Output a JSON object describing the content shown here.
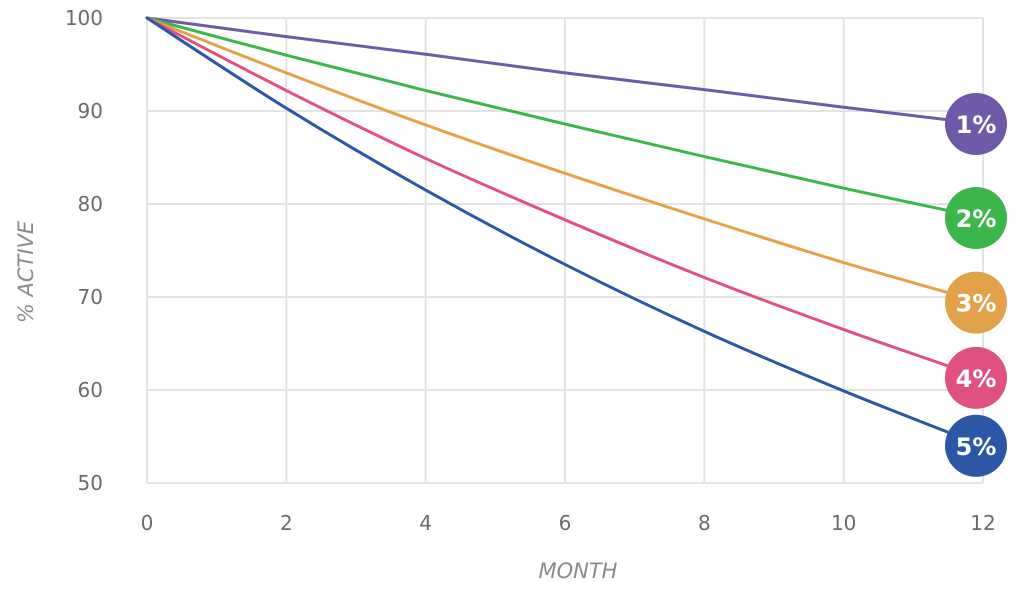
{
  "chart_data": {
    "type": "line",
    "xlabel": "MONTH",
    "ylabel": "% ACTIVE",
    "xlim": [
      0,
      12
    ],
    "ylim": [
      50,
      100
    ],
    "x_ticks": [
      0,
      2,
      4,
      6,
      8,
      10,
      12
    ],
    "y_ticks": [
      50,
      60,
      70,
      80,
      90,
      100
    ],
    "grid": true,
    "x": [
      0,
      2,
      4,
      6,
      8,
      10,
      12
    ],
    "series": [
      {
        "name": "1%",
        "color": "#6e5aa8",
        "values": [
          100,
          98.0,
          96.1,
          94.1,
          92.3,
          90.4,
          88.6
        ]
      },
      {
        "name": "2%",
        "color": "#3cb54a",
        "values": [
          100,
          96.0,
          92.2,
          88.6,
          85.1,
          81.7,
          78.5
        ]
      },
      {
        "name": "3%",
        "color": "#e2a24a",
        "values": [
          100,
          94.1,
          88.5,
          83.3,
          78.4,
          73.7,
          69.4
        ]
      },
      {
        "name": "4%",
        "color": "#e05080",
        "values": [
          100,
          92.2,
          84.9,
          78.3,
          72.1,
          66.5,
          61.3
        ]
      },
      {
        "name": "5%",
        "color": "#2c57a5",
        "values": [
          100,
          90.3,
          81.5,
          73.5,
          66.3,
          59.9,
          54.0
        ]
      }
    ]
  }
}
